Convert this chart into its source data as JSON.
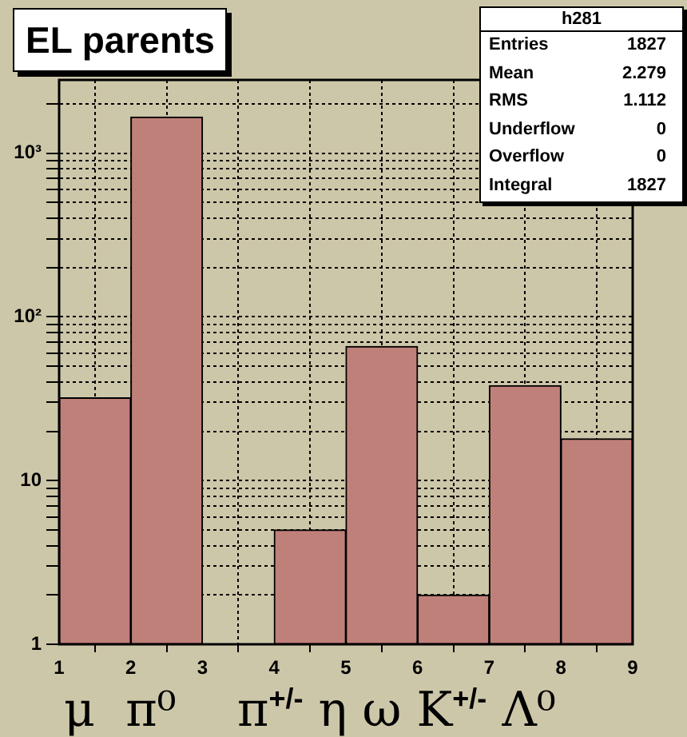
{
  "chart_data": {
    "type": "histogram",
    "title": "EL parents",
    "xlabel": "μ  π⁰    π$^{+/-}$ η ω K$^{+/-}$ Λ⁰",
    "bins": [
      1,
      2,
      3,
      4,
      5,
      6,
      7,
      8,
      9
    ],
    "values": [
      32,
      1660,
      null,
      5,
      66,
      2,
      38,
      18
    ],
    "color": "#c0807a",
    "log": "y",
    "xlim": [
      1,
      9
    ],
    "xticks": [
      1,
      2,
      3,
      4,
      5,
      6,
      7,
      8,
      9
    ],
    "ylim": [
      1,
      2800
    ],
    "yticks": [
      1,
      {
        "value": 2,
        "label": null
      },
      {
        "value": 3,
        "label": null
      },
      {
        "value": 4,
        "label": null
      },
      {
        "value": 5,
        "label": null
      },
      {
        "value": 6,
        "label": null
      },
      {
        "value": 7,
        "label": null
      },
      {
        "value": 8,
        "label": null
      },
      {
        "value": 9,
        "label": null
      },
      10,
      {
        "value": 20,
        "label": null
      },
      {
        "value": 30,
        "label": null
      },
      {
        "value": 40,
        "label": null
      },
      {
        "value": 50,
        "label": null
      },
      {
        "value": 60,
        "label": null
      },
      {
        "value": 70,
        "label": null
      },
      {
        "value": 80,
        "label": null
      },
      {
        "value": 90,
        "label": null
      },
      {
        "value": 100,
        "label": "10²"
      },
      {
        "value": 200,
        "label": null
      },
      {
        "value": 300,
        "label": null
      },
      {
        "value": 400,
        "label": null
      },
      {
        "value": 500,
        "label": null
      },
      {
        "value": 600,
        "label": null
      },
      {
        "value": 700,
        "label": null
      },
      {
        "value": 800,
        "label": null
      },
      {
        "value": 900,
        "label": null
      },
      {
        "value": 1000,
        "label": "10³"
      },
      {
        "value": 2000,
        "label": null
      }
    ],
    "grid": true,
    "legend": false,
    "annotations": [
      "h281",
      "Entries 1827",
      "Mean 2.279",
      "RMS 1.112",
      "Underflow 0",
      "Overflow 0",
      "Integral 1827"
    ]
  }
}
